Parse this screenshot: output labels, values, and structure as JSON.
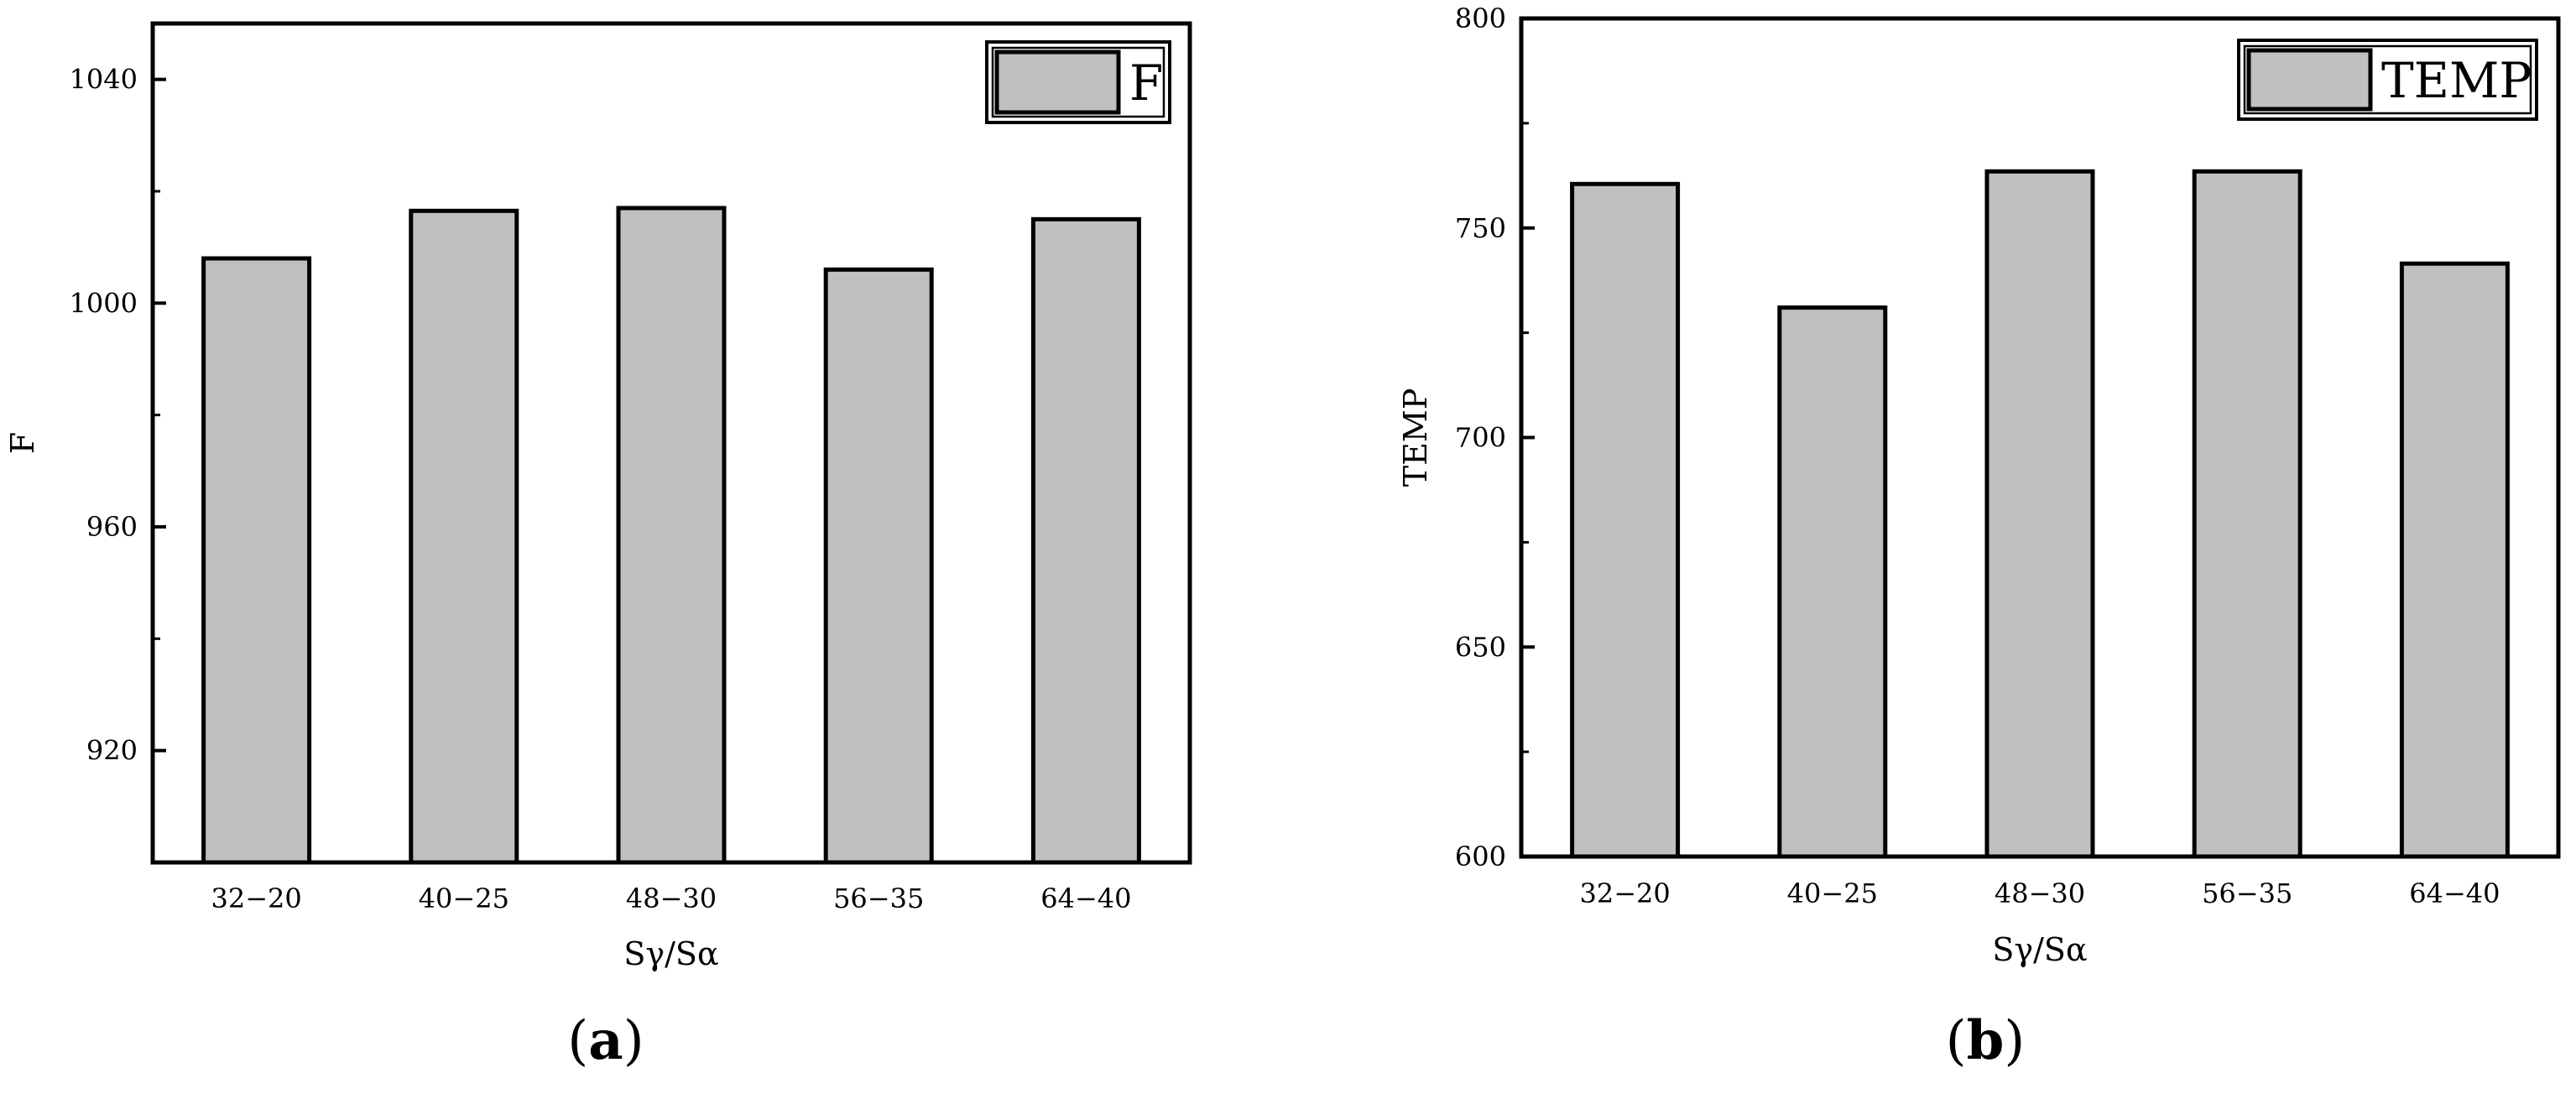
{
  "panel_labels": [
    "(a)",
    "(b)"
  ],
  "chart_data": [
    {
      "type": "bar",
      "panel": "a",
      "categories": [
        "32−20",
        "40−25",
        "48−30",
        "56−35",
        "64−40"
      ],
      "series": [
        {
          "name": "F",
          "values": [
            1008,
            1016.5,
            1017,
            1006,
            1015
          ]
        }
      ],
      "xlabel": "Sγ/Sα",
      "ylabel": "F",
      "ylim": [
        900,
        1050
      ],
      "yticks": [
        920,
        960,
        1000,
        1040
      ],
      "legend": "top-right",
      "fill_color": "#c0c0c0",
      "edge_color": "#000000"
    },
    {
      "type": "bar",
      "panel": "b",
      "categories": [
        "32−20",
        "40−25",
        "48−30",
        "56−35",
        "64−40"
      ],
      "series": [
        {
          "name": "TEMP",
          "values": [
            760.5,
            731,
            763.5,
            763.5,
            741.5
          ]
        }
      ],
      "xlabel": "Sγ/Sα",
      "ylabel": "TEMP",
      "ylim": [
        600,
        800
      ],
      "yticks": [
        600,
        650,
        700,
        750,
        800
      ],
      "legend": "top-right",
      "fill_color": "#c0c0c0",
      "edge_color": "#000000"
    }
  ]
}
